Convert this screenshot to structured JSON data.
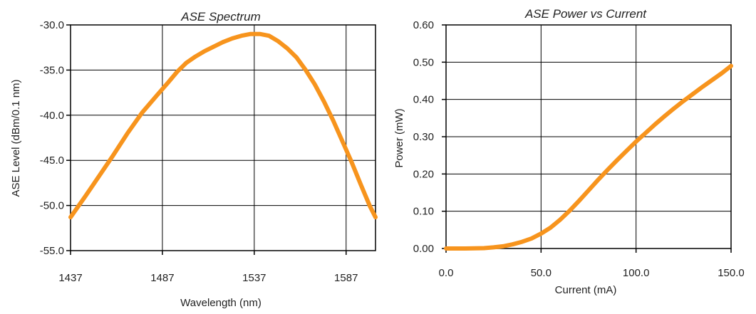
{
  "chart_data": [
    {
      "type": "line",
      "title": "ASE Spectrum",
      "xlabel": "Wavelength (nm)",
      "ylabel": "ASE Level (dBm/0.1 nm)",
      "xlim": [
        1437,
        1603
      ],
      "ylim": [
        -55.0,
        -30.0
      ],
      "xticks": [
        1437,
        1487,
        1537,
        1587
      ],
      "xtick_labels": [
        "1437",
        "1487",
        "1537",
        "1587"
      ],
      "yticks": [
        -55,
        -50,
        -45,
        -40,
        -35,
        -30
      ],
      "ytick_labels": [
        "-55.0",
        "-50.0",
        "-45.0",
        "-40.0",
        "-35.0",
        "-30.0"
      ],
      "grid": true,
      "line_color": "#f7941d",
      "series": [
        {
          "x": [
            1437,
            1445,
            1452,
            1460,
            1468,
            1476,
            1484,
            1490,
            1495,
            1500,
            1505,
            1510,
            1515,
            1520,
            1525,
            1530,
            1535,
            1540,
            1545,
            1550,
            1555,
            1560,
            1565,
            1570,
            1575,
            1580,
            1585,
            1590,
            1595,
            1600,
            1603
          ],
          "y": [
            -51.3,
            -49.0,
            -46.9,
            -44.5,
            -42.0,
            -39.7,
            -37.8,
            -36.4,
            -35.2,
            -34.2,
            -33.5,
            -32.9,
            -32.4,
            -31.9,
            -31.5,
            -31.2,
            -31.0,
            -31.0,
            -31.2,
            -31.8,
            -32.6,
            -33.6,
            -35.0,
            -36.6,
            -38.5,
            -40.6,
            -42.9,
            -45.2,
            -47.7,
            -50.1,
            -51.3
          ]
        }
      ]
    },
    {
      "type": "line",
      "title": "ASE Power vs Current",
      "xlabel": "Current (mA)",
      "ylabel": "Power (mW)",
      "xlim": [
        0,
        150
      ],
      "ylim": [
        0,
        0.6
      ],
      "xticks": [
        0,
        50,
        100,
        150
      ],
      "xtick_labels": [
        "0.0",
        "50.0",
        "100.0",
        "150.0"
      ],
      "yticks": [
        0,
        0.1,
        0.2,
        0.3,
        0.4,
        0.5,
        0.6
      ],
      "ytick_labels": [
        "0.00",
        "0.10",
        "0.20",
        "0.30",
        "0.40",
        "0.50",
        "0.60"
      ],
      "grid": true,
      "line_color": "#f7941d",
      "series": [
        {
          "x": [
            0,
            10,
            20,
            25,
            30,
            35,
            40,
            45,
            50,
            55,
            60,
            65,
            70,
            75,
            80,
            85,
            90,
            95,
            100,
            105,
            110,
            115,
            120,
            125,
            130,
            135,
            140,
            145,
            150
          ],
          "y": [
            0,
            0,
            0.001,
            0.003,
            0.006,
            0.011,
            0.018,
            0.027,
            0.04,
            0.056,
            0.077,
            0.101,
            0.128,
            0.156,
            0.184,
            0.211,
            0.237,
            0.262,
            0.287,
            0.31,
            0.333,
            0.355,
            0.376,
            0.396,
            0.415,
            0.434,
            0.452,
            0.47,
            0.49
          ]
        }
      ]
    }
  ]
}
